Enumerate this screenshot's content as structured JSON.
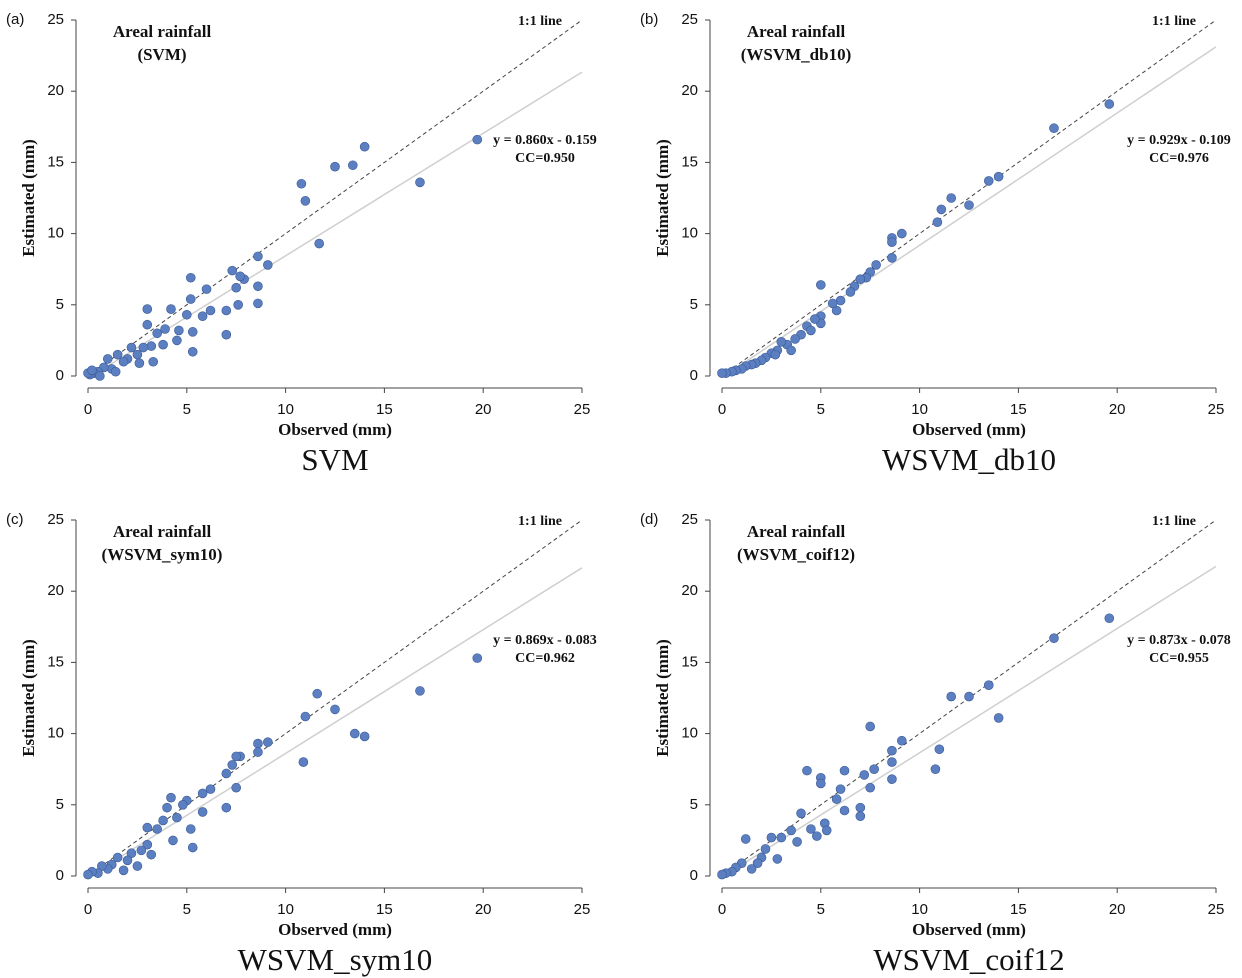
{
  "chart_data": [
    {
      "type": "scatter",
      "panel_label": "(a)",
      "title": "Areal rainfall",
      "subtitle": "(SVM)",
      "reference_label": "1:1 line",
      "equation": "y = 0.860x - 0.159",
      "cc": "CC=0.950",
      "fit_slope": 0.86,
      "fit_intercept": -0.159,
      "xlabel": "Observed (mm)",
      "ylabel": "Estimated (mm)",
      "caption": "SVM",
      "color": "#5b7fc1",
      "xlim": [
        0,
        25
      ],
      "ylim": [
        0,
        25
      ],
      "xticks": [
        0,
        5,
        10,
        15,
        20,
        25
      ],
      "yticks": [
        0,
        5,
        10,
        15,
        20,
        25
      ],
      "x": [
        19.7,
        16.8,
        14,
        13.4,
        12.5,
        11.7,
        11,
        10.8,
        9.1,
        8.6,
        8.6,
        8.6,
        7.9,
        7.7,
        7.5,
        7.3,
        7.6,
        7,
        7,
        6.2,
        6,
        5.8,
        5.3,
        5.2,
        5.2,
        5.3,
        5,
        4.6,
        4.2,
        3.9,
        3.5,
        3.2,
        3,
        3,
        2.8,
        2.5,
        2.2,
        2,
        1.8,
        1.5,
        1.2,
        1,
        0.8,
        0.5,
        0.3,
        0.1,
        0,
        0.2,
        3.8,
        4.5,
        2.6,
        1.4,
        0.6,
        3.3
      ],
      "y": [
        16.6,
        13.6,
        16.1,
        14.8,
        14.7,
        9.3,
        12.3,
        13.5,
        7.8,
        8.4,
        6.3,
        5.1,
        6.8,
        7,
        6.2,
        7.4,
        5,
        2.9,
        4.6,
        4.6,
        6.1,
        4.2,
        3.1,
        6.9,
        5.4,
        1.7,
        4.3,
        3.2,
        4.7,
        3.3,
        3,
        2.1,
        4.7,
        3.6,
        2,
        1.5,
        2,
        1.2,
        1,
        1.5,
        0.5,
        1.2,
        0.6,
        0.3,
        0.2,
        0.1,
        0.2,
        0.4,
        2.2,
        2.5,
        0.9,
        0.3,
        0,
        1
      ]
    },
    {
      "type": "scatter",
      "panel_label": "(b)",
      "title": "Areal rainfall",
      "subtitle": "(WSVM_db10)",
      "reference_label": "1:1 line",
      "equation": "y = 0.929x - 0.109",
      "cc": "CC=0.976",
      "fit_slope": 0.929,
      "fit_intercept": -0.109,
      "xlabel": "Observed (mm)",
      "ylabel": "Estimated (mm)",
      "caption": "WSVM_db10",
      "color": "#5b7fc1",
      "xlim": [
        0,
        25
      ],
      "ylim": [
        0,
        25
      ],
      "xticks": [
        0,
        5,
        10,
        15,
        20,
        25
      ],
      "yticks": [
        0,
        5,
        10,
        15,
        20,
        25
      ],
      "x": [
        19.6,
        16.8,
        14,
        13.5,
        12.5,
        11.6,
        11.1,
        10.9,
        9.1,
        8.6,
        8.6,
        8.6,
        7.8,
        7.5,
        7.3,
        7,
        6.7,
        6.5,
        6,
        5.8,
        5.6,
        5,
        5,
        5,
        4.7,
        4.3,
        4,
        3.7,
        3.3,
        3,
        2.8,
        2.5,
        2.2,
        2,
        1.7,
        1.5,
        1.2,
        1,
        0.7,
        0.5,
        0.2,
        0,
        3.5,
        4.5,
        2.7
      ],
      "y": [
        19.1,
        17.4,
        14,
        13.7,
        12,
        12.5,
        11.7,
        10.8,
        10,
        9.7,
        9.4,
        8.3,
        7.8,
        7.3,
        6.9,
        6.8,
        6.3,
        5.9,
        5.3,
        4.6,
        5.1,
        6.4,
        4.2,
        3.7,
        4,
        3.5,
        2.9,
        2.6,
        2.2,
        2.4,
        1.8,
        1.6,
        1.3,
        1.1,
        0.9,
        0.8,
        0.7,
        0.5,
        0.4,
        0.3,
        0.2,
        0.2,
        1.8,
        3.2,
        1.5
      ]
    },
    {
      "type": "scatter",
      "panel_label": "(c)",
      "title": "Areal rainfall",
      "subtitle": "(WSVM_sym10)",
      "reference_label": "1:1 line",
      "equation": "y = 0.869x - 0.083",
      "cc": "CC=0.962",
      "fit_slope": 0.869,
      "fit_intercept": -0.083,
      "xlabel": "Observed (mm)",
      "ylabel": "Estimated (mm)",
      "caption": "WSVM_sym10",
      "color": "#5b7fc1",
      "xlim": [
        0,
        25
      ],
      "ylim": [
        0,
        25
      ],
      "xticks": [
        0,
        5,
        10,
        15,
        20,
        25
      ],
      "yticks": [
        0,
        5,
        10,
        15,
        20,
        25
      ],
      "x": [
        19.7,
        16.8,
        14,
        13.5,
        12.5,
        11.6,
        11,
        10.9,
        9.1,
        8.6,
        8.6,
        7.7,
        7.5,
        7.5,
        7.3,
        7,
        7,
        6.2,
        5.8,
        5.8,
        5.3,
        5.2,
        5,
        4.8,
        4.5,
        4.2,
        4,
        3.8,
        3.5,
        3,
        3,
        2.7,
        2.5,
        2.2,
        2,
        1.8,
        1.5,
        1.2,
        1,
        0.7,
        0.5,
        0.2,
        0,
        3.2,
        4.3
      ],
      "y": [
        15.3,
        13,
        9.8,
        10,
        11.7,
        12.8,
        11.2,
        8,
        9.4,
        9.3,
        8.7,
        8.4,
        8.4,
        6.2,
        7.8,
        7.2,
        4.8,
        6.1,
        5.8,
        4.5,
        2,
        3.3,
        5.3,
        5,
        4.1,
        5.5,
        4.8,
        3.9,
        3.3,
        3.4,
        2.2,
        1.8,
        0.7,
        1.6,
        1.1,
        0.4,
        1.3,
        0.8,
        0.5,
        0.7,
        0.2,
        0.3,
        0.1,
        1.5,
        2.5
      ]
    },
    {
      "type": "scatter",
      "panel_label": "(d)",
      "title": "Areal rainfall",
      "subtitle": "(WSVM_coif12)",
      "reference_label": "1:1 line",
      "equation": "y = 0.873x - 0.078",
      "cc": "CC=0.955",
      "fit_slope": 0.873,
      "fit_intercept": -0.078,
      "xlabel": "Observed (mm)",
      "ylabel": "Estimated (mm)",
      "caption": "WSVM_coif12",
      "color": "#5b7fc1",
      "xlim": [
        0,
        25
      ],
      "ylim": [
        0,
        25
      ],
      "xticks": [
        0,
        5,
        10,
        15,
        20,
        25
      ],
      "yticks": [
        0,
        5,
        10,
        15,
        20,
        25
      ],
      "x": [
        19.6,
        16.8,
        14,
        13.5,
        12.5,
        11.6,
        11,
        10.8,
        9.1,
        8.6,
        8.6,
        8.6,
        7.7,
        7.5,
        7.5,
        7.2,
        7,
        7,
        6.2,
        6,
        5.8,
        5,
        5,
        5.2,
        4.8,
        4.3,
        4,
        3.8,
        3.5,
        3,
        2.8,
        2.5,
        2.2,
        2,
        1.8,
        1.5,
        1.2,
        1,
        0.7,
        0.5,
        0.2,
        0,
        4.5,
        6.2,
        5.3
      ],
      "y": [
        18.1,
        16.7,
        11.1,
        13.4,
        12.6,
        12.6,
        8.9,
        7.5,
        9.5,
        8.8,
        8,
        6.8,
        7.5,
        10.5,
        6.2,
        7.1,
        4.8,
        4.2,
        7.4,
        6.1,
        5.4,
        6.9,
        6.5,
        3.7,
        2.8,
        7.4,
        4.4,
        2.4,
        3.2,
        2.7,
        1.2,
        2.7,
        1.9,
        1.3,
        0.9,
        0.5,
        2.6,
        0.9,
        0.6,
        0.3,
        0.2,
        0.1,
        3.3,
        4.6,
        3.2
      ]
    }
  ]
}
